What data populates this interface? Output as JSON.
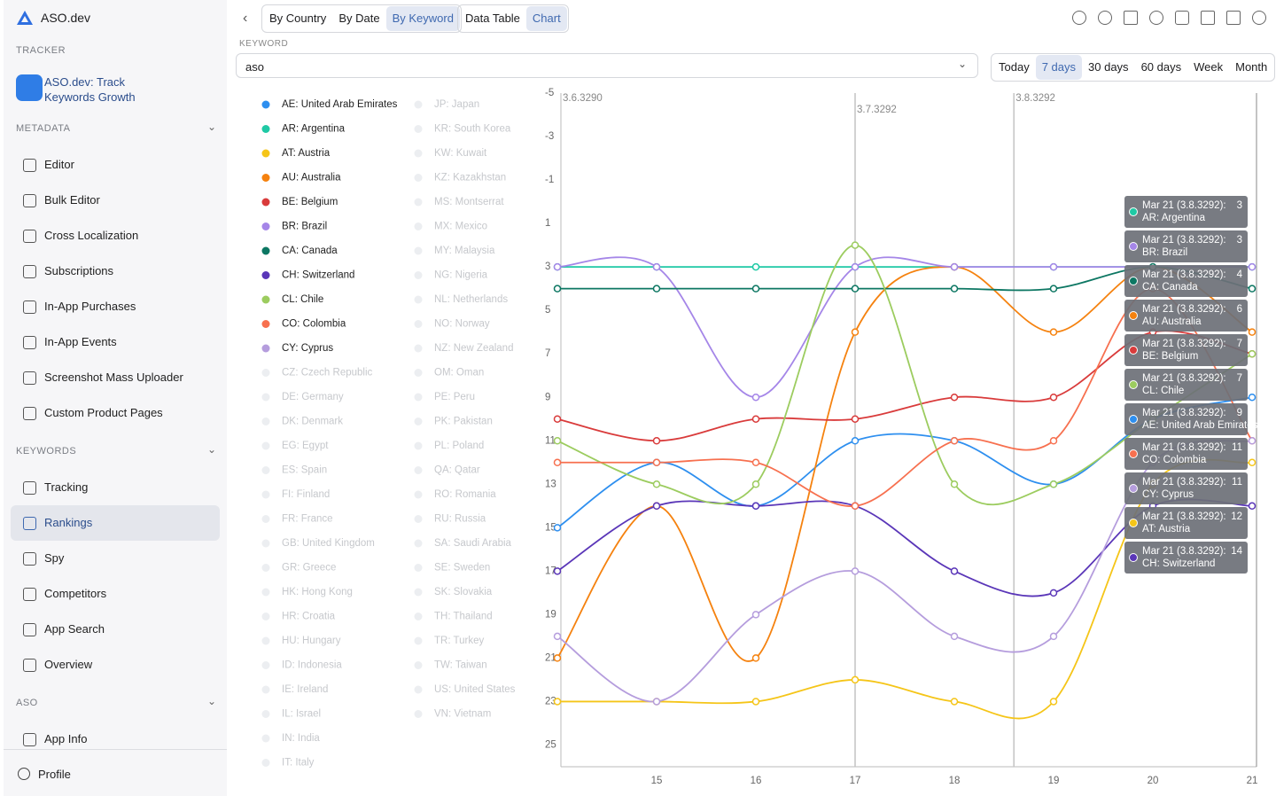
{
  "sidebar": {
    "brand": "ASO.dev",
    "tracker": "TRACKER",
    "app": "ASO.dev: Track Keywords Growth",
    "sections": [
      {
        "title": "METADATA",
        "items": [
          "Editor",
          "Bulk Editor",
          "Cross Localization",
          "Subscriptions",
          "In-App Purchases",
          "In-App Events",
          "Screenshot Mass Uploader",
          "Custom Product Pages"
        ]
      },
      {
        "title": "KEYWORDS",
        "items": [
          "Tracking",
          "Rankings",
          "Spy",
          "Competitors",
          "App Search",
          "Overview"
        ],
        "active": 1
      },
      {
        "title": "ASO",
        "items": [
          "App Info"
        ]
      }
    ],
    "profile": "Profile"
  },
  "toolbar": {
    "view_tabs": [
      "By Country",
      "By Date",
      "By Keyword"
    ],
    "active_view": 2,
    "mode_tabs": [
      "Data Table",
      "Chart"
    ],
    "active_mode": 1,
    "keyword_label": "KEYWORD",
    "keyword": "aso",
    "ranges": [
      "Today",
      "7 days",
      "30 days",
      "60 days",
      "Week",
      "Month"
    ],
    "active_range": 1
  },
  "chart_data": {
    "type": "line",
    "x": [
      14,
      15,
      16,
      17,
      18,
      19,
      20,
      21
    ],
    "xlim": [
      14,
      21
    ],
    "xticks": [
      15,
      16,
      17,
      18,
      19,
      20,
      21
    ],
    "ylim": [
      -5,
      26
    ],
    "y_inverted": true,
    "yticks": [
      -5,
      -3,
      -1,
      1,
      3,
      5,
      7,
      9,
      11,
      13,
      15,
      17,
      19,
      21,
      23,
      25
    ],
    "grid": false,
    "annotations": [
      {
        "x": 14,
        "label": "3.6.3290"
      },
      {
        "x": 17,
        "label": "3.7.3292"
      },
      {
        "x": 18.6,
        "label": "3.8.3292"
      }
    ],
    "tooltip_header": "Mar 21 (3.8.3292):",
    "series": [
      {
        "name": "AE: United Arab Emirates",
        "color": "#2e8fef",
        "values": [
          15,
          12,
          14,
          11,
          11,
          13,
          10,
          9
        ]
      },
      {
        "name": "AR: Argentina",
        "color": "#1fc9a5",
        "values": [
          3,
          3,
          3,
          3,
          3,
          3,
          3,
          3
        ]
      },
      {
        "name": "AT: Austria",
        "color": "#f5c518",
        "values": [
          23,
          23,
          23,
          22,
          23,
          23,
          13,
          12
        ]
      },
      {
        "name": "AU: Australia",
        "color": "#f5820f",
        "values": [
          21,
          14,
          21,
          6,
          3,
          6,
          3,
          6
        ]
      },
      {
        "name": "BE: Belgium",
        "color": "#d93b3b",
        "values": [
          10,
          11,
          10,
          10,
          9,
          9,
          6,
          7
        ]
      },
      {
        "name": "BR: Brazil",
        "color": "#a586e8",
        "values": [
          3,
          3,
          9,
          3,
          3,
          3,
          3,
          3
        ]
      },
      {
        "name": "CA: Canada",
        "color": "#0d7763",
        "values": [
          4,
          4,
          4,
          4,
          4,
          4,
          3,
          4
        ]
      },
      {
        "name": "CH: Switzerland",
        "color": "#5a36b8",
        "values": [
          17,
          14,
          14,
          14,
          17,
          18,
          14,
          14
        ]
      },
      {
        "name": "CL: Chile",
        "color": "#9ccc5f",
        "values": [
          11,
          13,
          13,
          2,
          13,
          13,
          10,
          7
        ]
      },
      {
        "name": "CO: Colombia",
        "color": "#f7704f",
        "values": [
          12,
          12,
          12,
          14,
          11,
          11,
          4,
          11
        ]
      },
      {
        "name": "CY: Cyprus",
        "color": "#b59ddd",
        "values": [
          20,
          23,
          19,
          17,
          20,
          20,
          12,
          11
        ]
      }
    ],
    "inactive_countries": [
      "CZ: Czech Republic",
      "DE: Germany",
      "DK: Denmark",
      "EG: Egypt",
      "ES: Spain",
      "FI: Finland",
      "FR: France",
      "GB: United Kingdom",
      "GR: Greece",
      "HK: Hong Kong",
      "HR: Croatia",
      "HU: Hungary",
      "ID: Indonesia",
      "IE: Ireland",
      "IL: Israel",
      "IN: India",
      "IT: Italy",
      "JP: Japan",
      "KR: South Korea",
      "KW: Kuwait",
      "KZ: Kazakhstan",
      "MS: Montserrat",
      "MX: Mexico",
      "MY: Malaysia",
      "NG: Nigeria",
      "NL: Netherlands",
      "NO: Norway",
      "NZ: New Zealand",
      "OM: Oman",
      "PE: Peru",
      "PK: Pakistan",
      "PL: Poland",
      "QA: Qatar",
      "RO: Romania",
      "RU: Russia",
      "SA: Saudi Arabia",
      "SE: Sweden",
      "SK: Slovakia",
      "TH: Thailand",
      "TR: Turkey",
      "TW: Taiwan",
      "US: United States",
      "VN: Vietnam"
    ]
  }
}
